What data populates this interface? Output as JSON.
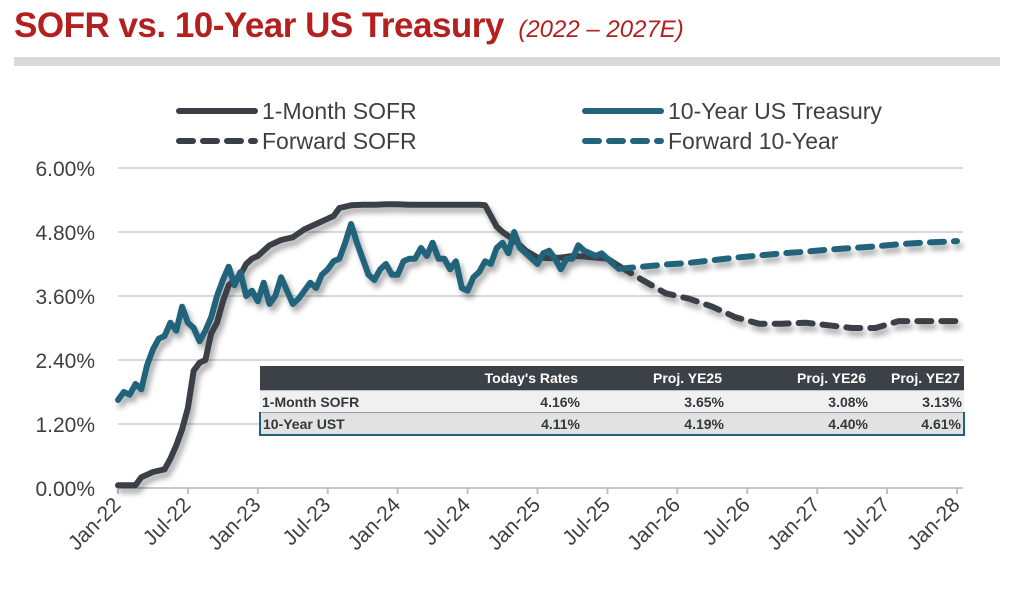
{
  "header": {
    "title": "SOFR vs. 10-Year US Treasury",
    "subtitle": "(2022 – 2027E)"
  },
  "colors": {
    "title": "#b3201f",
    "sofr": "#3a3f46",
    "treasury": "#21647c",
    "grid": "#d9d9d9",
    "table_header": "#3c4148"
  },
  "legend": {
    "sofr": "1-Month SOFR",
    "treasury": "10-Year US Treasury",
    "fwd_sofr": "Forward SOFR",
    "fwd_treasury": "Forward 10-Year"
  },
  "table": {
    "headers": [
      "",
      "Today's Rates",
      "Proj. YE25",
      "Proj. YE26",
      "Proj. YE27"
    ],
    "rows": [
      {
        "label": "1-Month SOFR",
        "values": [
          "4.16%",
          "3.65%",
          "3.08%",
          "3.13%"
        ]
      },
      {
        "label": "10-Year UST",
        "values": [
          "4.11%",
          "4.19%",
          "4.40%",
          "4.61%"
        ]
      }
    ]
  },
  "chart_data": {
    "type": "line",
    "title": "SOFR vs. 10-Year US Treasury (2022 – 2027E)",
    "xlabel": "",
    "ylabel": "",
    "x_ticks": [
      "Jan-22",
      "Jul-22",
      "Jan-23",
      "Jul-23",
      "Jan-24",
      "Jul-24",
      "Jan-25",
      "Jul-25",
      "Jan-26",
      "Jul-26",
      "Jan-27",
      "Jul-27",
      "Jan-28"
    ],
    "y_ticks": [
      "0.00%",
      "1.20%",
      "2.40%",
      "3.60%",
      "4.80%",
      "6.00%"
    ],
    "ylim": [
      0,
      6.0
    ],
    "xlim_months": [
      0,
      72
    ],
    "grid": true,
    "legend_position": "top",
    "x_unit": "months since Jan-22",
    "series": [
      {
        "name": "1-Month SOFR",
        "style": "solid",
        "color": "#3a3f46",
        "x": [
          0,
          1.5,
          2,
          3,
          4,
          4.5,
          5,
          5.5,
          6,
          6.5,
          7,
          7.5,
          8,
          8.5,
          9,
          9.5,
          10,
          10.5,
          11,
          11.5,
          12,
          13,
          14,
          15,
          16,
          17,
          18,
          18.5,
          19,
          20,
          21,
          22,
          23,
          24,
          25,
          26,
          27,
          28,
          29,
          30,
          31,
          31.5,
          32,
          32.5,
          33,
          34,
          35,
          36,
          37,
          38,
          39,
          40,
          41,
          42,
          43
        ],
        "values": [
          0.05,
          0.05,
          0.2,
          0.3,
          0.35,
          0.55,
          0.8,
          1.1,
          1.5,
          2.2,
          2.35,
          2.4,
          2.9,
          3.1,
          3.5,
          3.8,
          3.9,
          4.0,
          4.2,
          4.3,
          4.35,
          4.55,
          4.65,
          4.7,
          4.85,
          4.95,
          5.05,
          5.1,
          5.25,
          5.3,
          5.31,
          5.31,
          5.32,
          5.32,
          5.31,
          5.31,
          5.31,
          5.31,
          5.31,
          5.31,
          5.31,
          5.3,
          5.1,
          4.9,
          4.8,
          4.65,
          4.45,
          4.32,
          4.31,
          4.32,
          4.35,
          4.34,
          4.32,
          4.3,
          4.16
        ]
      },
      {
        "name": "10-Year US Treasury",
        "style": "solid",
        "color": "#21647c",
        "x": [
          0,
          0.5,
          1,
          1.5,
          2,
          2.5,
          3,
          3.5,
          4,
          4.5,
          5,
          5.5,
          6,
          6.5,
          7,
          7.5,
          8,
          8.5,
          9,
          9.5,
          10,
          10.5,
          11,
          11.5,
          12,
          12.5,
          13,
          13.5,
          14,
          14.5,
          15,
          15.5,
          16,
          16.5,
          17,
          17.5,
          18,
          18.5,
          19,
          19.5,
          20,
          20.5,
          21,
          21.5,
          22,
          22.5,
          23,
          23.5,
          24,
          24.5,
          25,
          25.5,
          26,
          26.5,
          27,
          27.5,
          28,
          28.5,
          29,
          29.5,
          30,
          30.5,
          31,
          31.5,
          32,
          32.5,
          33,
          33.5,
          34,
          34.5,
          35,
          35.5,
          36,
          36.5,
          37,
          37.5,
          38,
          38.5,
          39,
          39.5,
          40,
          40.5,
          41,
          41.5,
          42,
          42.5,
          43
        ],
        "values": [
          1.65,
          1.8,
          1.75,
          1.95,
          1.85,
          2.3,
          2.6,
          2.8,
          2.85,
          3.1,
          2.95,
          3.4,
          3.1,
          3.0,
          2.75,
          2.95,
          3.2,
          3.6,
          3.9,
          4.15,
          3.8,
          4.05,
          3.6,
          3.7,
          3.5,
          3.85,
          3.45,
          3.6,
          3.95,
          3.7,
          3.45,
          3.55,
          3.7,
          3.85,
          3.75,
          4.0,
          4.1,
          4.25,
          4.3,
          4.6,
          4.95,
          4.6,
          4.3,
          4.0,
          3.9,
          4.1,
          4.2,
          4.0,
          4.0,
          4.25,
          4.3,
          4.3,
          4.5,
          4.35,
          4.6,
          4.3,
          4.3,
          4.1,
          4.25,
          3.75,
          3.7,
          3.95,
          4.05,
          4.25,
          4.2,
          4.5,
          4.6,
          4.4,
          4.8,
          4.5,
          4.4,
          4.3,
          4.2,
          4.4,
          4.45,
          4.3,
          4.1,
          4.3,
          4.3,
          4.55,
          4.45,
          4.4,
          4.35,
          4.4,
          4.3,
          4.2,
          4.11
        ]
      },
      {
        "name": "Forward SOFR",
        "style": "dashed",
        "color": "#3a3f46",
        "x": [
          43,
          45,
          47,
          49,
          51,
          53,
          55,
          57,
          59,
          61,
          63,
          65,
          67,
          69,
          72
        ],
        "values": [
          4.16,
          3.9,
          3.65,
          3.55,
          3.4,
          3.2,
          3.08,
          3.08,
          3.1,
          3.05,
          3.0,
          3.0,
          3.13,
          3.13,
          3.13
        ]
      },
      {
        "name": "Forward 10-Year",
        "style": "dashed",
        "color": "#21647c",
        "x": [
          43,
          45,
          47,
          49,
          51,
          53,
          55,
          57,
          59,
          61,
          63,
          65,
          67,
          69,
          72
        ],
        "values": [
          4.11,
          4.15,
          4.19,
          4.22,
          4.27,
          4.32,
          4.36,
          4.4,
          4.43,
          4.47,
          4.5,
          4.53,
          4.57,
          4.6,
          4.63
        ]
      }
    ]
  }
}
